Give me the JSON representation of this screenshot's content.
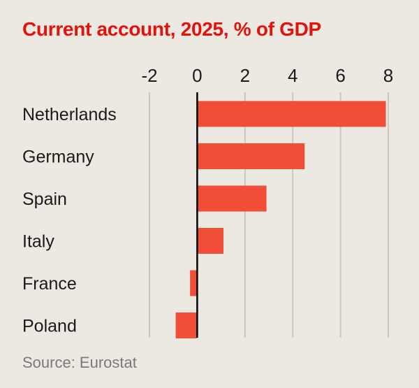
{
  "chart_data": {
    "type": "bar",
    "orientation": "horizontal",
    "title": "Current account, 2025, % of GDP",
    "categories": [
      "Netherlands",
      "Germany",
      "Spain",
      "Italy",
      "France",
      "Poland"
    ],
    "values": [
      7.9,
      4.5,
      2.9,
      1.1,
      -0.3,
      -0.9
    ],
    "xlim": [
      -2,
      8
    ],
    "xticks": [
      "-2",
      "0",
      "2",
      "4",
      "6",
      "8"
    ],
    "xtick_values": [
      -2,
      0,
      2,
      4,
      6,
      8
    ],
    "grid": true,
    "bar_color": "#f04e37",
    "axis_position": "top"
  },
  "source": "Source: Eurostat",
  "colors": {
    "title": "#e3120b",
    "background": "#ebe9e1",
    "grid": "#c8c6bd",
    "zero_line": "#000000",
    "text": "#1a1a1a",
    "source": "#7a7a7a"
  }
}
